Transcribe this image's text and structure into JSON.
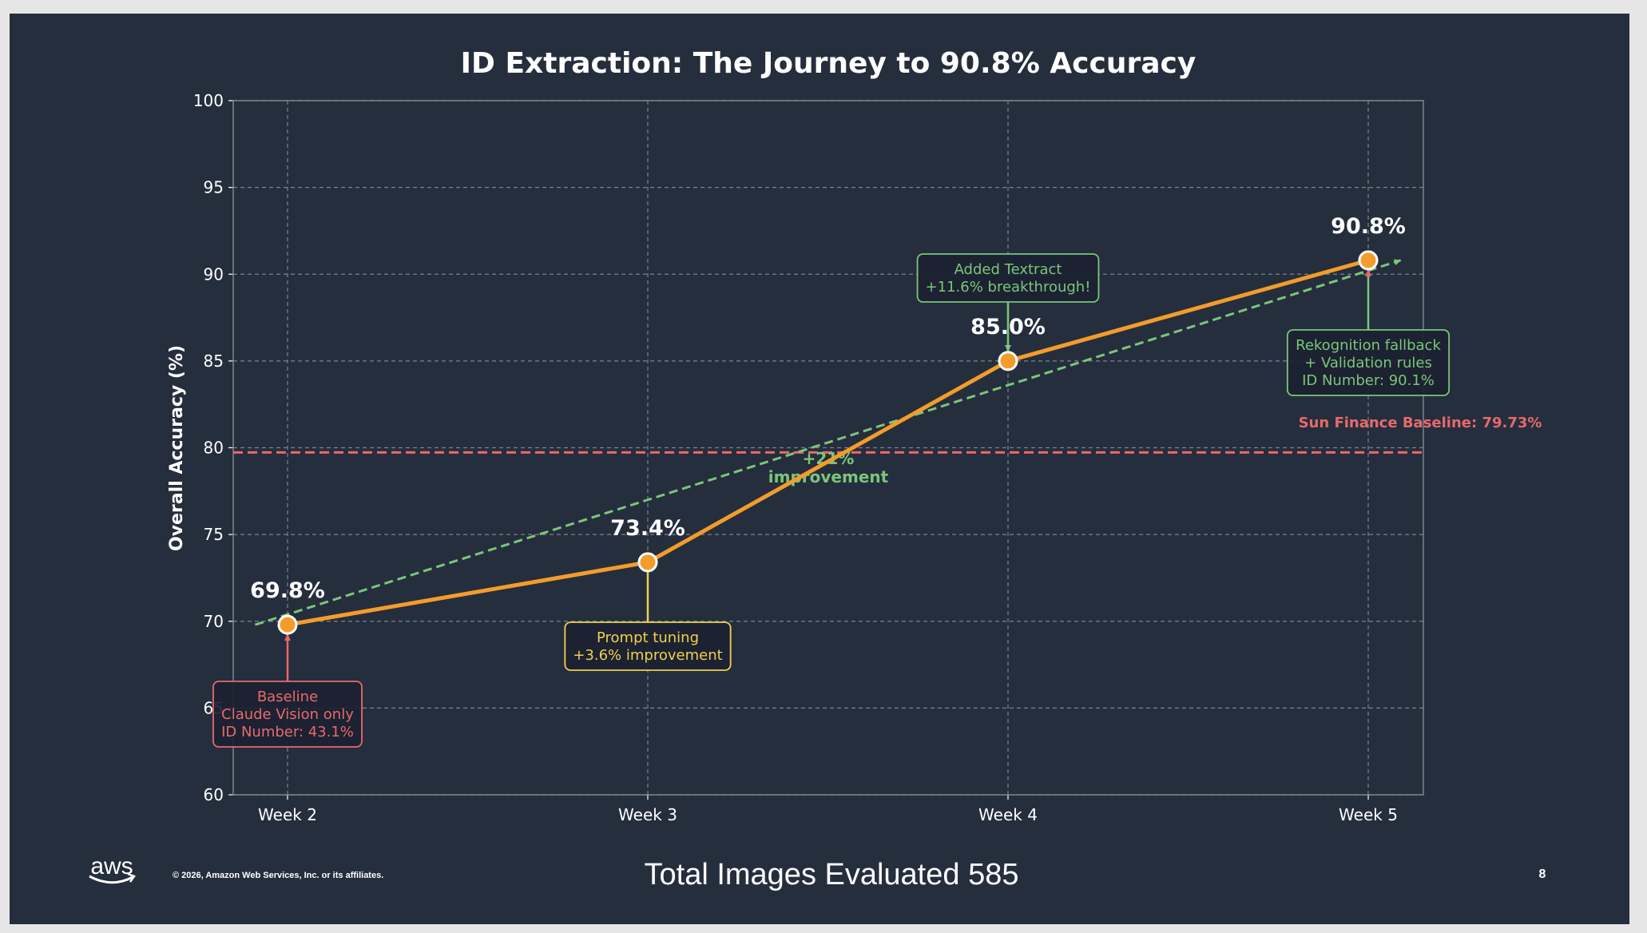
{
  "chart_data": {
    "type": "line",
    "title": "ID Extraction: The Journey to 90.8% Accuracy",
    "xlabel": "",
    "ylabel": "Overall Accuracy (%)",
    "categories": [
      "Week 2",
      "Week 3",
      "Week 4",
      "Week 5"
    ],
    "values": [
      69.8,
      73.4,
      85.0,
      90.8
    ],
    "data_labels": [
      "69.8%",
      "73.4%",
      "85.0%",
      "90.8%"
    ],
    "ylim": [
      60,
      100
    ],
    "yticks": [
      60,
      65,
      70,
      75,
      80,
      85,
      90,
      95,
      100
    ],
    "grid": true,
    "baseline": {
      "value": 79.73,
      "label": "Sun Finance Baseline: 79.73%",
      "color": "#e8696b"
    },
    "trend": {
      "from": 69.8,
      "to": 90.8,
      "label": [
        "+21%",
        "improvement"
      ],
      "color": "#7bc67b"
    },
    "annotations": [
      {
        "category": "Week 2",
        "lines": [
          "Baseline",
          "Claude Vision only",
          "ID Number: 43.1%"
        ],
        "color": "#e8696b"
      },
      {
        "category": "Week 3",
        "lines": [
          "Prompt tuning",
          "+3.6% improvement"
        ],
        "color": "#f0d050"
      },
      {
        "category": "Week 4",
        "lines": [
          "Added Textract",
          "+11.6% breakthrough!"
        ],
        "color": "#7bc67b"
      },
      {
        "category": "Week 5",
        "lines": [
          "Rekognition fallback",
          "+ Validation rules",
          "ID Number: 90.1%"
        ],
        "color": "#7bc67b"
      }
    ],
    "colors": {
      "line": "#f39c2b",
      "background": "#252e3d",
      "text": "#ffffff",
      "grid": "#7a8290"
    }
  },
  "footer": {
    "logo": "aws",
    "copyright": "© 2026, Amazon Web Services, Inc. or its affiliates.",
    "summary": "Total Images Evaluated 585",
    "page_number": "8"
  }
}
